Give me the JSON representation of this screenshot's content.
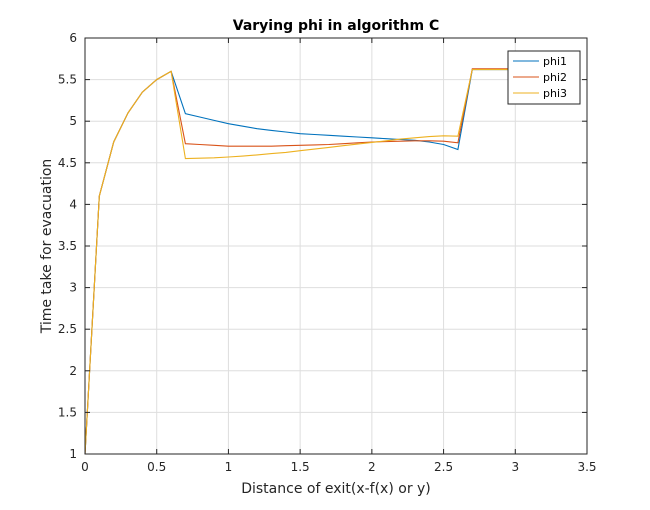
{
  "chart_data": {
    "type": "line",
    "title": "Varying phi in algorithm C",
    "xlabel": "Distance of exit(x-f(x) or y)",
    "ylabel": "Time take for evacuation",
    "xlim": [
      0,
      3.5
    ],
    "ylim": [
      1,
      6
    ],
    "xticks": [
      0,
      0.5,
      1,
      1.5,
      2,
      2.5,
      3,
      3.5
    ],
    "xtick_labels": [
      "0",
      "0.5",
      "1",
      "1.5",
      "2",
      "2.5",
      "3",
      "3.5"
    ],
    "yticks": [
      1,
      1.5,
      2,
      2.5,
      3,
      3.5,
      4,
      4.5,
      5,
      5.5,
      6
    ],
    "ytick_labels": [
      "1",
      "1.5",
      "2",
      "2.5",
      "3",
      "3.5",
      "4",
      "4.5",
      "5",
      "5.5",
      "6"
    ],
    "grid": true,
    "legend_position": "top-right",
    "x": [
      0,
      0.1,
      0.2,
      0.3,
      0.4,
      0.5,
      0.6,
      0.7,
      0.8,
      0.9,
      1.0,
      1.1,
      1.2,
      1.3,
      1.4,
      1.5,
      1.6,
      1.7,
      1.8,
      1.9,
      2.0,
      2.1,
      2.2,
      2.3,
      2.4,
      2.5,
      2.6,
      2.7,
      2.8,
      2.9,
      3.0
    ],
    "series": [
      {
        "name": "phi1",
        "color": "#0072BD",
        "values": [
          1.0,
          4.1,
          4.75,
          5.1,
          5.35,
          5.5,
          5.6,
          5.09,
          5.05,
          5.01,
          4.97,
          4.94,
          4.91,
          4.89,
          4.87,
          4.85,
          4.84,
          4.83,
          4.82,
          4.81,
          4.8,
          4.79,
          4.78,
          4.77,
          4.75,
          4.72,
          4.66,
          5.62,
          5.62,
          5.62,
          5.62
        ]
      },
      {
        "name": "phi2",
        "color": "#D95319",
        "values": [
          1.0,
          4.1,
          4.75,
          5.1,
          5.35,
          5.5,
          5.6,
          4.73,
          4.72,
          4.71,
          4.7,
          4.7,
          4.7,
          4.7,
          4.705,
          4.71,
          4.715,
          4.72,
          4.73,
          4.74,
          4.75,
          4.755,
          4.76,
          4.765,
          4.765,
          4.76,
          4.74,
          5.63,
          5.63,
          5.63,
          5.63
        ]
      },
      {
        "name": "phi3",
        "color": "#EDB120",
        "values": [
          1.0,
          4.1,
          4.75,
          5.1,
          5.35,
          5.5,
          5.6,
          4.55,
          4.555,
          4.56,
          4.57,
          4.58,
          4.595,
          4.61,
          4.625,
          4.645,
          4.665,
          4.685,
          4.705,
          4.725,
          4.745,
          4.765,
          4.785,
          4.8,
          4.815,
          4.825,
          4.82,
          5.62,
          5.62,
          5.62,
          5.62
        ]
      }
    ]
  }
}
